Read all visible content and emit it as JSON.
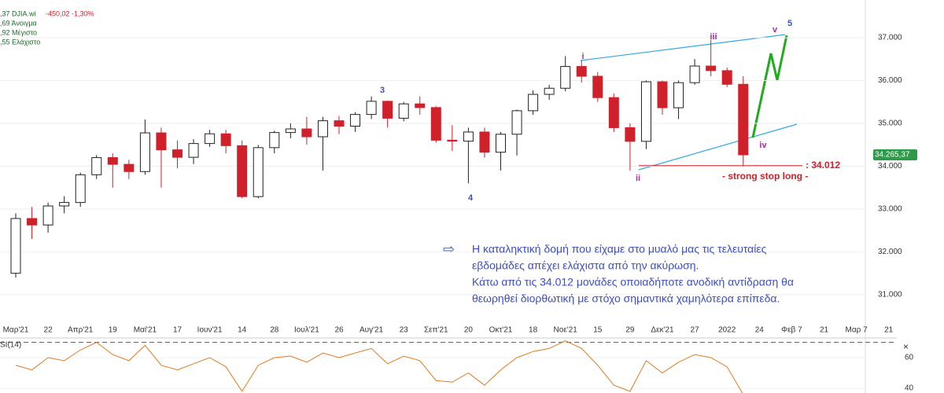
{
  "chart_data": [
    {
      "type": "candlestick",
      "categories": [
        "Μαρ'21",
        null,
        "22",
        null,
        "Απρ'21",
        null,
        "19",
        null,
        "Μαϊ'21",
        null,
        "17",
        null,
        "Ιουν'21",
        null,
        "14",
        null,
        "28",
        null,
        "Ιουλ'21",
        null,
        "26",
        null,
        "Αυγ'21",
        null,
        "23",
        null,
        "Σεπ'21",
        null,
        "20",
        null,
        "Οκτ'21",
        null,
        "18",
        null,
        "Νοε'21",
        null,
        "15",
        null,
        "29",
        null,
        "Δεκ'21",
        null,
        "27",
        null,
        "2022",
        null,
        "24",
        null,
        "Φεβ 7",
        null,
        "21",
        null,
        "Μαρ 7",
        null,
        "21"
      ],
      "open": [
        31500,
        32779,
        32628,
        33072,
        33153,
        33800,
        34200,
        34043,
        33875,
        34778,
        34382,
        34208,
        34529,
        34756,
        34479,
        33290,
        34433,
        34786,
        34870,
        34687,
        35061,
        34935,
        35208,
        35515,
        35120,
        35455,
        35369,
        34607,
        34584,
        34798,
        34326,
        34746,
        35295,
        35677,
        35820,
        36328,
        36100,
        35601,
        34899,
        34580,
        35971,
        35365,
        35950,
        36338,
        36231,
        35912,
        null,
        null,
        null,
        null,
        null,
        null,
        null,
        null,
        null
      ],
      "high": [
        32900,
        33050,
        33150,
        33300,
        33850,
        34260,
        34300,
        34150,
        35090,
        34900,
        34600,
        34630,
        34850,
        34850,
        34600,
        34500,
        34830,
        35000,
        35150,
        35150,
        35170,
        35260,
        35630,
        35530,
        35500,
        35630,
        35400,
        34960,
        34900,
        34900,
        34800,
        35320,
        35770,
        35900,
        36570,
        36480,
        36200,
        35700,
        35000,
        36000,
        36000,
        36000,
        36500,
        36950,
        36300,
        36100,
        null,
        null,
        null,
        null,
        null,
        null,
        null,
        null,
        null
      ],
      "low": [
        31400,
        32300,
        32450,
        32900,
        33050,
        33700,
        33500,
        33700,
        33800,
        33500,
        33950,
        34050,
        34450,
        34300,
        33250,
        33250,
        34300,
        34650,
        34500,
        33900,
        34750,
        34800,
        35100,
        34900,
        35050,
        35200,
        34550,
        34350,
        33600,
        34200,
        33900,
        34250,
        35200,
        35550,
        35750,
        35950,
        35500,
        34800,
        33900,
        34400,
        35200,
        35100,
        35900,
        36100,
        35850,
        34000,
        null,
        null,
        null,
        null,
        null,
        null,
        null,
        null,
        null
      ],
      "close": [
        32779,
        32628,
        33072,
        33153,
        33800,
        34200,
        34043,
        33875,
        34778,
        34382,
        34208,
        34529,
        34756,
        34479,
        33290,
        34433,
        34786,
        34870,
        34687,
        35061,
        34935,
        35208,
        35515,
        35120,
        35455,
        35369,
        34607,
        34584,
        34798,
        34326,
        34746,
        35295,
        35677,
        35820,
        36328,
        36100,
        35601,
        34899,
        34580,
        35971,
        35365,
        35950,
        36338,
        36231,
        35912,
        34265.37,
        null,
        null,
        null,
        null,
        null,
        null,
        null,
        null,
        null
      ],
      "up_color": "#ffffff",
      "down_color": "#d0202a",
      "ylim": [
        30540,
        37880
      ],
      "yticks": [
        {
          "value": 31000,
          "label": "31.000"
        },
        {
          "value": 32000,
          "label": "32.000"
        },
        {
          "value": 33000,
          "label": "33.000"
        },
        {
          "value": 34000,
          "label": "34.000"
        },
        {
          "value": 35000,
          "label": "35.000"
        },
        {
          "value": 36000,
          "label": "36.000"
        },
        {
          "value": 37000,
          "label": "37.000"
        }
      ],
      "grid": true,
      "last_price": 34265.37,
      "last_price_label": "34.265,37",
      "stop_level": 34012,
      "stop_level_label": ": 34.012",
      "stop_text": "- strong stop long -",
      "wave_labels": [
        "i",
        "ii",
        "iii",
        "iv",
        "v",
        "5",
        "3",
        "4"
      ],
      "info": [
        ",37 DJIA.wi",
        ",69 Άνοιγμα",
        ",92 Μέγιστο",
        ",55 Ελάχιστο"
      ],
      "change": "-450,02 -1,30%",
      "annotation": [
        "Η καταληκτική δομή που είχαμε στο μυαλό μας τις τελευταίες",
        "εβδομάδες απέχει ελάχιστα από την ακύρωση.",
        "Κάτω από τις 34.012 μονάδες οποιαδήποτε ανοδική αντίδραση θα",
        "θεωρηθεί διορθωτική με στόχο σημαντικά χαμηλότερα επίπεδα."
      ]
    },
    {
      "type": "line",
      "name": "SI(14)",
      "color": "#e07b20",
      "values": [
        55,
        52,
        60,
        58,
        65,
        70,
        62,
        58,
        68,
        55,
        52,
        56,
        60,
        54,
        38,
        55,
        60,
        61,
        57,
        63,
        60,
        63,
        66,
        56,
        61,
        58,
        45,
        44,
        50,
        42,
        52,
        60,
        64,
        66,
        71,
        66,
        55,
        42,
        38,
        58,
        50,
        57,
        62,
        60,
        54,
        36,
        null,
        null,
        null,
        null,
        null,
        null,
        null,
        null,
        null
      ],
      "ylim": [
        36.9,
        71.8
      ],
      "yticks": [
        40,
        60
      ],
      "level": 70,
      "level_color": "#c0392b"
    }
  ]
}
